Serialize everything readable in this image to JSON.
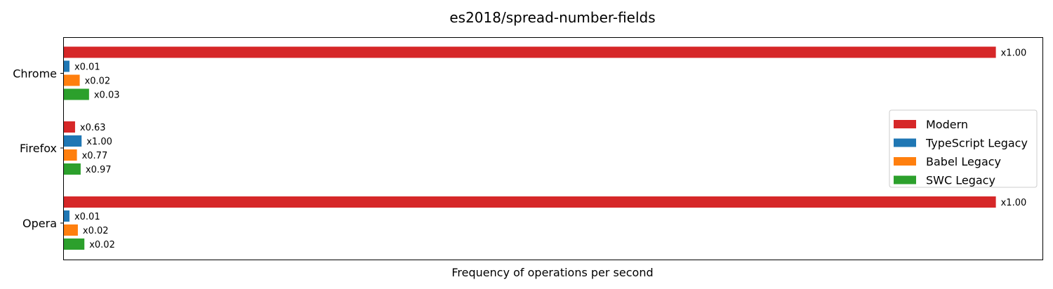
{
  "chart_data": {
    "type": "bar",
    "orientation": "horizontal",
    "title": "es2018/spread-number-fields",
    "xlabel": "Frequency of operations per second",
    "ylabel": "",
    "categories": [
      "Chrome",
      "Firefox",
      "Opera"
    ],
    "xticks_shown": false,
    "grid": false,
    "legend_position": "right",
    "xlim": [
      0,
      1.05
    ],
    "series": [
      {
        "name": "Modern",
        "color": "#d62728",
        "values": [
          1.0,
          0.012,
          1.0
        ],
        "labels": [
          "x1.00",
          "x0.63",
          "x1.00"
        ]
      },
      {
        "name": "TypeScript Legacy",
        "color": "#1f77b4",
        "values": [
          0.006,
          0.019,
          0.006
        ],
        "labels": [
          "x0.01",
          "x1.00",
          "x0.01"
        ]
      },
      {
        "name": "Babel Legacy",
        "color": "#ff7f0e",
        "values": [
          0.017,
          0.014,
          0.015
        ],
        "labels": [
          "x0.02",
          "x0.77",
          "x0.02"
        ]
      },
      {
        "name": "SWC Legacy",
        "color": "#2ca02c",
        "values": [
          0.027,
          0.018,
          0.022
        ],
        "labels": [
          "x0.03",
          "x0.97",
          "x0.02"
        ]
      }
    ]
  }
}
